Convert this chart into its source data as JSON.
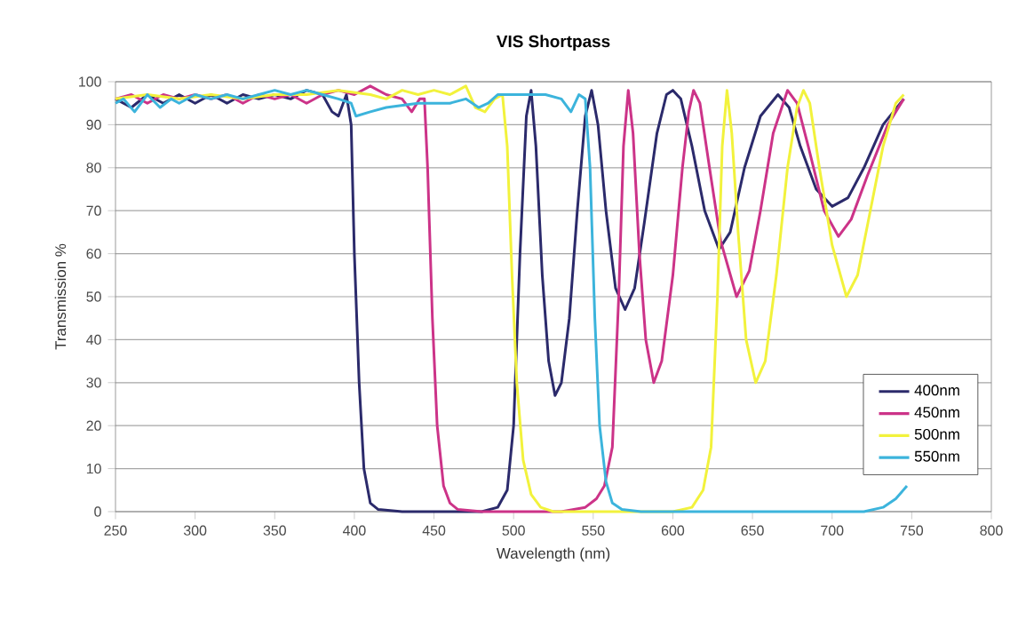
{
  "chart_data": {
    "type": "line",
    "title": "VIS Shortpass",
    "xlabel": "Wavelength (nm)",
    "ylabel": "Transmission %",
    "xlim": [
      250,
      800
    ],
    "ylim": [
      0,
      100
    ],
    "xticks": [
      250,
      300,
      350,
      400,
      450,
      500,
      550,
      600,
      650,
      700,
      750,
      800
    ],
    "yticks": [
      0,
      10,
      20,
      30,
      40,
      50,
      60,
      70,
      80,
      90,
      100
    ],
    "grid": "y",
    "legend": "bottom right",
    "marker": "none",
    "line_style": "solid",
    "series": [
      {
        "name": "400nm",
        "color": "#2b2a6b",
        "x": [
          250,
          260,
          270,
          280,
          290,
          300,
          310,
          320,
          330,
          340,
          350,
          360,
          370,
          380,
          386,
          390,
          395,
          398,
          400,
          403,
          406,
          410,
          415,
          430,
          480,
          490,
          496,
          500,
          504,
          508,
          511,
          514,
          518,
          522,
          526,
          530,
          535,
          540,
          545,
          549,
          553,
          558,
          564,
          570,
          576,
          582,
          590,
          596,
          600,
          605,
          612,
          620,
          629,
          636,
          645,
          655,
          666,
          673,
          680,
          690,
          700,
          710,
          720,
          732,
          745
        ],
        "values": [
          96,
          94,
          97,
          95,
          97,
          95,
          97,
          95,
          97,
          96,
          97,
          96,
          98,
          97,
          93,
          92,
          97,
          90,
          60,
          30,
          10,
          2,
          0.5,
          0,
          0,
          1,
          5,
          20,
          60,
          92,
          98,
          85,
          55,
          35,
          27,
          30,
          45,
          70,
          92,
          98,
          90,
          70,
          52,
          47,
          52,
          67,
          88,
          97,
          98,
          96,
          85,
          70,
          61,
          65,
          80,
          92,
          97,
          94,
          85,
          75,
          71,
          73,
          80,
          90,
          96
        ]
      },
      {
        "name": "450nm",
        "color": "#cc3388",
        "x": [
          250,
          260,
          270,
          280,
          290,
          300,
          310,
          320,
          330,
          340,
          350,
          360,
          370,
          380,
          390,
          400,
          410,
          420,
          430,
          436,
          441,
          444,
          446,
          449,
          452,
          456,
          460,
          465,
          480,
          530,
          545,
          552,
          557,
          562,
          566,
          569,
          572,
          575,
          579,
          583,
          588,
          593,
          600,
          606,
          610,
          613,
          617,
          623,
          630,
          640,
          648,
          655,
          663,
          672,
          678,
          685,
          695,
          704,
          712,
          722,
          735,
          745
        ],
        "values": [
          96,
          97,
          95,
          97,
          96,
          97,
          96,
          97,
          95,
          97,
          96,
          97,
          95,
          97,
          98,
          97,
          99,
          97,
          96,
          93,
          96,
          96,
          80,
          45,
          20,
          6,
          2,
          0.5,
          0,
          0,
          1,
          3,
          6,
          15,
          50,
          85,
          98,
          88,
          60,
          40,
          30,
          35,
          55,
          80,
          93,
          98,
          95,
          80,
          63,
          50,
          56,
          70,
          88,
          98,
          95,
          85,
          70,
          64,
          68,
          78,
          90,
          96
        ]
      },
      {
        "name": "500nm",
        "color": "#f2f23c",
        "x": [
          250,
          270,
          290,
          310,
          330,
          350,
          370,
          390,
          410,
          420,
          430,
          440,
          450,
          460,
          470,
          476,
          482,
          488,
          493,
          496,
          499,
          502,
          506,
          511,
          517,
          525,
          600,
          612,
          619,
          624,
          628,
          631,
          634,
          637,
          641,
          646,
          652,
          658,
          665,
          672,
          678,
          682,
          686,
          692,
          700,
          709,
          716,
          724,
          732,
          740,
          745
        ],
        "values": [
          96,
          97,
          96,
          97,
          96,
          97,
          97,
          98,
          97,
          96,
          98,
          97,
          98,
          97,
          99,
          94,
          93,
          96,
          97,
          85,
          55,
          30,
          12,
          4,
          1,
          0,
          0,
          1,
          5,
          15,
          50,
          85,
          98,
          88,
          65,
          40,
          30,
          35,
          55,
          80,
          94,
          98,
          95,
          80,
          62,
          50,
          55,
          70,
          85,
          95,
          97
        ]
      },
      {
        "name": "550nm",
        "color": "#3cb4dc",
        "x": [
          250,
          255,
          262,
          270,
          278,
          285,
          290,
          300,
          310,
          320,
          330,
          340,
          350,
          360,
          370,
          380,
          390,
          398,
          401,
          410,
          420,
          440,
          460,
          470,
          478,
          484,
          490,
          500,
          520,
          530,
          536,
          541,
          545,
          548,
          551,
          554,
          558,
          562,
          568,
          580,
          720,
          732,
          740,
          747
        ],
        "values": [
          95,
          96,
          93,
          97,
          94,
          96,
          95,
          97,
          96,
          97,
          96,
          97,
          98,
          97,
          98,
          97,
          96,
          95,
          92,
          93,
          94,
          95,
          95,
          96,
          94,
          95,
          97,
          97,
          97,
          96,
          93,
          97,
          96,
          80,
          45,
          20,
          7,
          2,
          0.5,
          0,
          0,
          1,
          3,
          6
        ]
      }
    ]
  }
}
